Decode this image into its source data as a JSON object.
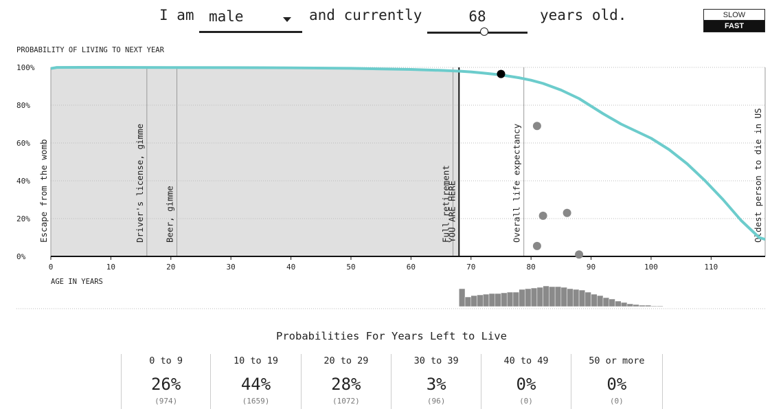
{
  "header": {
    "prefix": "I am",
    "sex_value": "male",
    "middle": "and currently",
    "age_value": "68",
    "suffix": "years old.",
    "age_slider_fraction": 0.57
  },
  "speed": {
    "slow_label": "SLOW",
    "fast_label": "FAST",
    "selected": "FAST"
  },
  "colors": {
    "curve": "#6ccccc",
    "shaded": "#e0e0e0",
    "dots": "#888888",
    "current_dot": "#000000",
    "histogram": "#8a8a8a"
  },
  "chart_data": {
    "type": "line",
    "title": "PROBABILITY OF LIVING TO NEXT YEAR",
    "xlabel": "AGE IN YEARS",
    "ylabel": "",
    "xlim": [
      0,
      119
    ],
    "ylim": [
      0,
      100
    ],
    "xticks": [
      0,
      10,
      20,
      30,
      40,
      50,
      60,
      70,
      80,
      90,
      100,
      110
    ],
    "yticks": [
      0,
      20,
      40,
      60,
      80,
      100
    ],
    "ytick_labels": [
      "0%",
      "20%",
      "40%",
      "60%",
      "80%",
      "100%"
    ],
    "grid": "horizontal",
    "series": [
      {
        "x": [
          0,
          1,
          5,
          10,
          20,
          30,
          40,
          50,
          55,
          60,
          65,
          68,
          70,
          72,
          75,
          78,
          80,
          82,
          85,
          88,
          90,
          92,
          95,
          98,
          100,
          103,
          106,
          109,
          112,
          115,
          118,
          119
        ],
        "y": [
          99.4,
          99.95,
          99.98,
          99.99,
          99.9,
          99.85,
          99.75,
          99.5,
          99.2,
          98.9,
          98.4,
          98.0,
          97.6,
          97.0,
          96.0,
          94.5,
          93.2,
          91.5,
          88.0,
          83.5,
          79.5,
          75.5,
          70.0,
          65.5,
          62.5,
          56.5,
          49.0,
          40.0,
          30.0,
          19.0,
          10.0,
          9.0
        ]
      }
    ],
    "current_point": {
      "x": 75,
      "y": 96.5
    },
    "scatter_points": [
      {
        "x": 81,
        "y": 69
      },
      {
        "x": 82,
        "y": 21.5
      },
      {
        "x": 86,
        "y": 23
      },
      {
        "x": 81,
        "y": 5.5
      },
      {
        "x": 88,
        "y": 1
      }
    ],
    "shaded_range": [
      0,
      68
    ],
    "you_are_here": {
      "x": 68,
      "label": "YOU ARE HERE"
    },
    "markers": [
      {
        "x": 0,
        "label": "Escape from the womb"
      },
      {
        "x": 16,
        "label": "Driver's license, gimme"
      },
      {
        "x": 21,
        "label": "Beer, gimme"
      },
      {
        "x": 67,
        "label": "Full retirement"
      },
      {
        "x": 78.8,
        "label": "Overall life expectancy"
      },
      {
        "x": 119,
        "label": "Oldest person to die in US"
      }
    ],
    "histogram": {
      "x_start": 68,
      "bin_width": 1,
      "values": [
        26,
        14,
        16,
        17,
        18,
        19,
        19,
        20,
        21,
        21,
        25,
        26,
        27,
        28,
        30,
        29,
        29,
        28,
        26,
        25,
        24,
        21,
        18,
        16,
        13,
        11,
        8,
        6,
        4,
        3,
        2,
        2,
        1,
        1,
        0.5,
        0.5,
        0.3
      ]
    }
  },
  "stats": {
    "title": "Probabilities For Years Left to Live",
    "columns": [
      {
        "range": "0 to 9",
        "percent": "26%",
        "count": "(974)"
      },
      {
        "range": "10 to 19",
        "percent": "44%",
        "count": "(1659)"
      },
      {
        "range": "20 to 29",
        "percent": "28%",
        "count": "(1072)"
      },
      {
        "range": "30 to 39",
        "percent": "3%",
        "count": "(96)"
      },
      {
        "range": "40 to 49",
        "percent": "0%",
        "count": "(0)"
      },
      {
        "range": "50 or more",
        "percent": "0%",
        "count": "(0)"
      }
    ]
  }
}
